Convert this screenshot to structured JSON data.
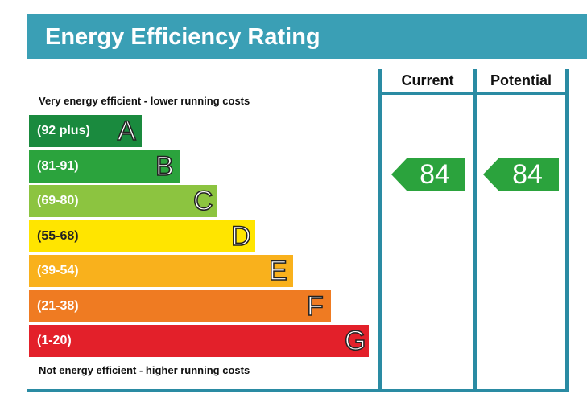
{
  "title": "Energy Efficiency Rating",
  "columns": {
    "current": "Current",
    "potential": "Potential"
  },
  "top_caption": "Very energy efficient - lower running costs",
  "bottom_caption": "Not energy efficient - higher running costs",
  "bands": [
    {
      "range": "(92 plus)",
      "letter": "A",
      "color": "#1a8a3e"
    },
    {
      "range": "(81-91)",
      "letter": "B",
      "color": "#2ba33d"
    },
    {
      "range": "(69-80)",
      "letter": "C",
      "color": "#8cc440"
    },
    {
      "range": "(55-68)",
      "letter": "D",
      "color": "#ffe500"
    },
    {
      "range": "(39-54)",
      "letter": "E",
      "color": "#f9b11c"
    },
    {
      "range": "(21-38)",
      "letter": "F",
      "color": "#ef7b22"
    },
    {
      "range": "(1-20)",
      "letter": "G",
      "color": "#e3202a"
    }
  ],
  "ratings": {
    "current": {
      "value": "84",
      "band": "B",
      "color": "#2ba33d"
    },
    "potential": {
      "value": "84",
      "band": "B",
      "color": "#2ba33d"
    }
  }
}
